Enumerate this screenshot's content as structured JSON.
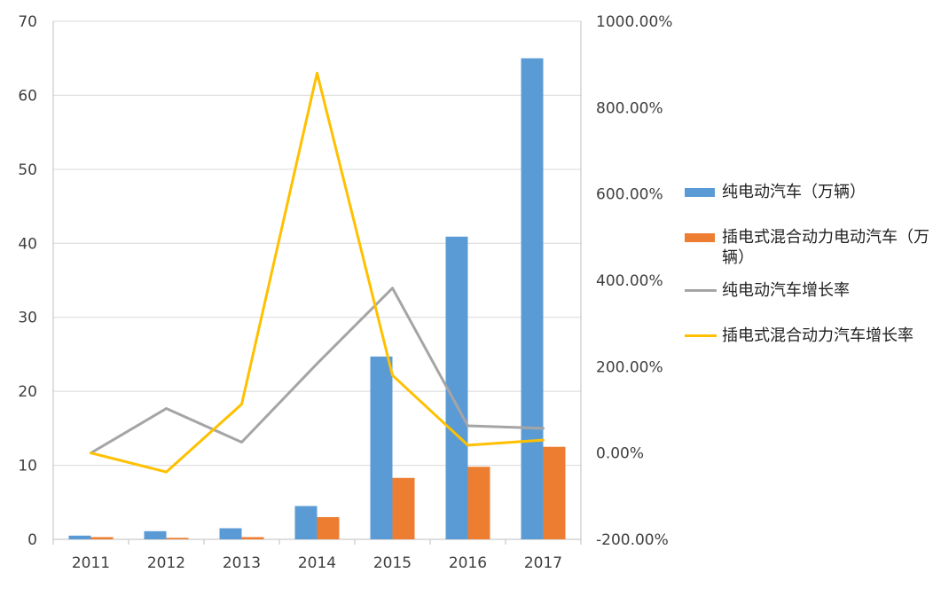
{
  "chart_data": {
    "type": "bar+line",
    "categories": [
      "2011",
      "2012",
      "2013",
      "2014",
      "2015",
      "2016",
      "2017"
    ],
    "y_left": {
      "min": 0,
      "max": 70,
      "step": 10,
      "ticks": [
        "0",
        "10",
        "20",
        "30",
        "40",
        "50",
        "60",
        "70"
      ]
    },
    "y_right": {
      "min": -200,
      "max": 1000,
      "step": 200,
      "ticks": [
        "-200.00%",
        "0.00%",
        "200.00%",
        "400.00%",
        "600.00%",
        "800.00%",
        "1000.00%"
      ]
    },
    "bar_series": [
      {
        "name": "纯电动汽车（万辆）",
        "color": "#5B9BD5",
        "values": [
          0.5,
          1.1,
          1.5,
          4.5,
          24.7,
          40.9,
          65.0
        ]
      },
      {
        "name": "插电式混合动力电动汽车（万辆）",
        "color": "#ED7D31",
        "values": [
          0.3,
          0.2,
          0.3,
          3.0,
          8.3,
          9.8,
          12.5
        ]
      }
    ],
    "line_series": [
      {
        "name": "纯电动汽车增长率",
        "color": "#A5A5A5",
        "values": [
          0,
          103,
          25,
          207,
          382,
          63,
          57
        ]
      },
      {
        "name": "插电式混合动力汽车增长率",
        "color": "#FFC000",
        "values": [
          0,
          -44,
          113,
          880,
          180,
          18,
          30
        ]
      }
    ],
    "gridlines": true,
    "legend_position": "right"
  }
}
